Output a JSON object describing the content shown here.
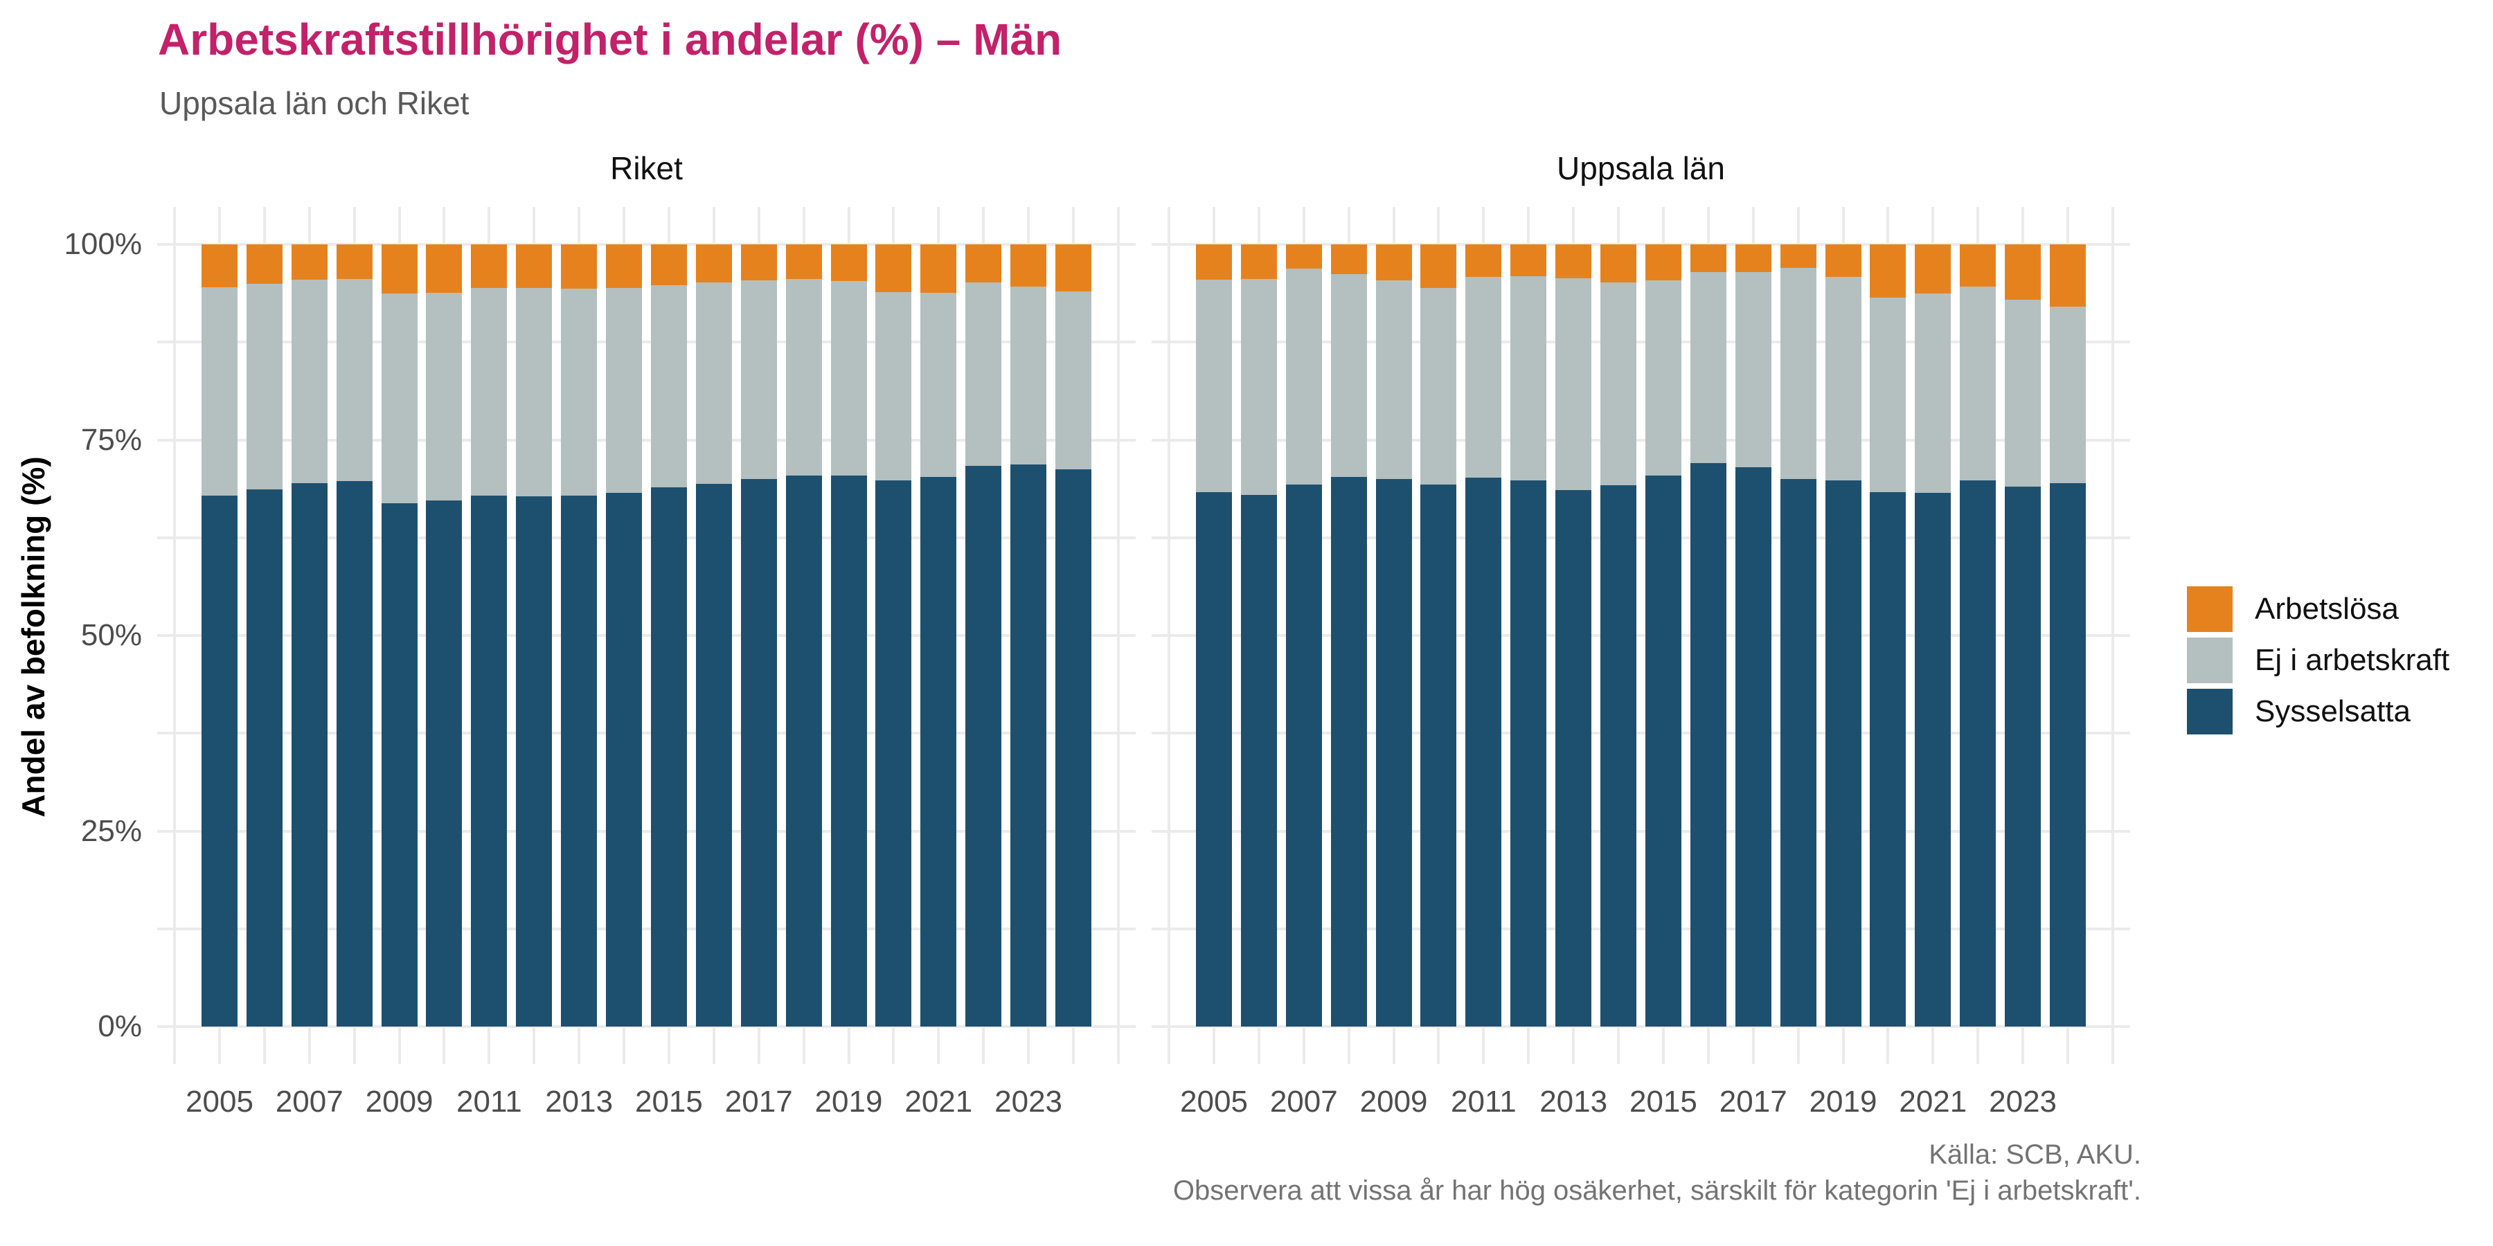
{
  "header": {
    "title": "Arbetskraftstillhörighet i andelar (%) – Män",
    "subtitle": "Uppsala län och Riket"
  },
  "colors": {
    "title_text": "#c32169",
    "subtitle_text": "#595959",
    "tick_text": "#4d4d4d",
    "gridline": "#ebebeb",
    "unemployed": "#e6821e",
    "not_in_labor_force": "#b4bfc0",
    "employed": "#1d506f"
  },
  "y_axis": {
    "title": "Andel av befolkning (%)",
    "tick_labels": [
      "0%",
      "25%",
      "50%",
      "75%",
      "100%"
    ],
    "tick_values": [
      0,
      25,
      50,
      75,
      100
    ]
  },
  "x_axis": {
    "tick_labels": [
      "2005",
      "2007",
      "2009",
      "2011",
      "2013",
      "2015",
      "2017",
      "2019",
      "2021",
      "2023"
    ]
  },
  "legend": {
    "items": [
      {
        "label": "Arbetslösa",
        "color_key": "unemployed"
      },
      {
        "label": "Ej i arbetskraft",
        "color_key": "not_in_labor_force"
      },
      {
        "label": "Sysselsatta",
        "color_key": "employed"
      }
    ]
  },
  "caption": {
    "line1": "Källa: SCB, AKU.",
    "line2": "Observera att vissa år har hög osäkerhet, särskilt för kategorin 'Ej i arbetskraft'."
  },
  "chart_data": {
    "type": "bar",
    "stacked": true,
    "stack_order_bottom_to_top": [
      "Sysselsatta",
      "Ej i arbetskraft",
      "Arbetslösa"
    ],
    "unit": "% av befolkning",
    "ylim": [
      0,
      100
    ],
    "grid": true,
    "legend_position": "right",
    "years": [
      2005,
      2006,
      2007,
      2008,
      2009,
      2010,
      2011,
      2012,
      2013,
      2014,
      2015,
      2016,
      2017,
      2018,
      2019,
      2020,
      2021,
      2022,
      2023,
      2024
    ],
    "facets": [
      {
        "name": "Riket",
        "series": [
          {
            "name": "Sysselsatta",
            "values": [
              67.9,
              68.7,
              69.5,
              69.7,
              66.9,
              67.3,
              67.9,
              67.8,
              67.9,
              68.2,
              68.9,
              69.4,
              70.0,
              70.4,
              70.4,
              69.8,
              70.3,
              71.7,
              71.9,
              71.2
            ]
          },
          {
            "name": "Ej i arbetskraft",
            "values": [
              26.6,
              26.3,
              26.0,
              25.9,
              26.8,
              26.5,
              26.5,
              26.6,
              26.4,
              26.2,
              25.9,
              25.7,
              25.4,
              25.2,
              24.9,
              24.1,
              23.5,
              23.4,
              22.7,
              22.8
            ]
          },
          {
            "name": "Arbetslösa",
            "values": [
              5.5,
              5.0,
              4.5,
              4.4,
              6.3,
              6.2,
              5.6,
              5.6,
              5.7,
              5.6,
              5.2,
              4.9,
              4.6,
              4.4,
              4.7,
              6.1,
              6.2,
              4.9,
              5.4,
              6.0
            ]
          }
        ]
      },
      {
        "name": "Uppsala län",
        "series": [
          {
            "name": "Sysselsatta",
            "values": [
              68.3,
              68.0,
              69.3,
              70.3,
              70.0,
              69.3,
              70.2,
              69.8,
              68.6,
              69.2,
              70.4,
              72.0,
              71.5,
              70.0,
              69.8,
              68.3,
              68.2,
              69.8,
              69.0,
              69.5
            ]
          },
          {
            "name": "Ej i arbetskraft",
            "values": [
              27.2,
              27.6,
              27.6,
              25.9,
              25.4,
              25.1,
              25.6,
              26.1,
              27.1,
              25.9,
              25.0,
              24.5,
              25.0,
              27.0,
              26.0,
              24.9,
              25.5,
              24.8,
              23.9,
              22.5
            ]
          },
          {
            "name": "Arbetslösa",
            "values": [
              4.5,
              4.4,
              3.1,
              3.8,
              4.6,
              5.6,
              4.2,
              4.1,
              4.3,
              4.9,
              4.6,
              3.5,
              3.5,
              3.0,
              4.2,
              6.8,
              6.3,
              5.4,
              7.1,
              8.0
            ]
          }
        ]
      }
    ]
  }
}
